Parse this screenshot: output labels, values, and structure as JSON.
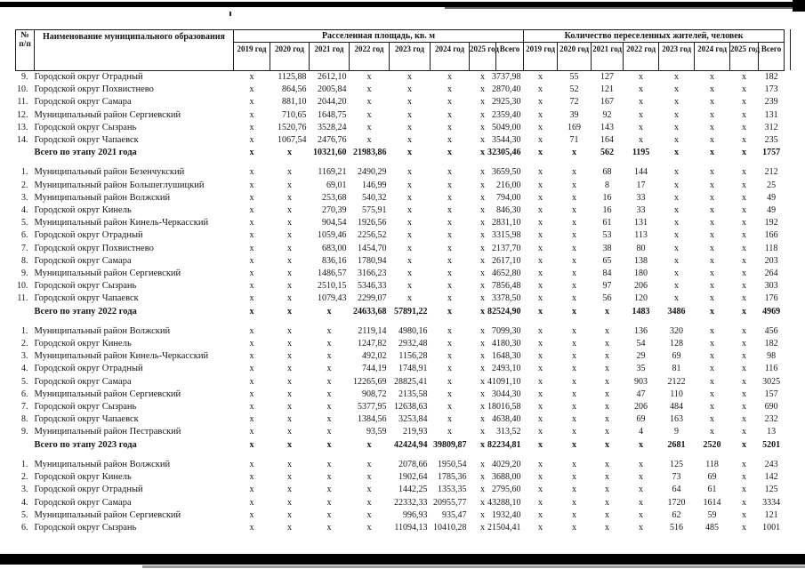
{
  "table": {
    "header": {
      "num_top": "№",
      "num_bottom": "п/п",
      "name": "Наименование муниципального образования",
      "group_area": "Расселенная площадь, кв. м",
      "group_people": "Количество переселенных жителей, человек",
      "year_cols": [
        "2019 год",
        "2020 год",
        "2021 год",
        "2022 год",
        "2023 год",
        "2024 год",
        "2025 год",
        "Всего"
      ]
    },
    "sections": [
      {
        "rows": [
          {
            "num": "9.",
            "name": "Городской округ Отрадный",
            "area": [
              "x",
              "1125,88",
              "2612,10",
              "x",
              "x",
              "x",
              "x",
              "3737,98"
            ],
            "people": [
              "x",
              "55",
              "127",
              "x",
              "x",
              "x",
              "x",
              "182"
            ]
          },
          {
            "num": "10.",
            "name": "Городской округ Похвистнево",
            "area": [
              "x",
              "864,56",
              "2005,84",
              "x",
              "x",
              "x",
              "x",
              "2870,40"
            ],
            "people": [
              "x",
              "52",
              "121",
              "x",
              "x",
              "x",
              "x",
              "173"
            ]
          },
          {
            "num": "11.",
            "name": "Городской округ Самара",
            "area": [
              "x",
              "881,10",
              "2044,20",
              "x",
              "x",
              "x",
              "x",
              "2925,30"
            ],
            "people": [
              "x",
              "72",
              "167",
              "x",
              "x",
              "x",
              "x",
              "239"
            ]
          },
          {
            "num": "12.",
            "name": "Муниципальный район Сергиевский",
            "area": [
              "x",
              "710,65",
              "1648,75",
              "x",
              "x",
              "x",
              "x",
              "2359,40"
            ],
            "people": [
              "x",
              "39",
              "92",
              "x",
              "x",
              "x",
              "x",
              "131"
            ]
          },
          {
            "num": "13.",
            "name": "Городской округ Сызрань",
            "area": [
              "x",
              "1520,76",
              "3528,24",
              "x",
              "x",
              "x",
              "x",
              "5049,00"
            ],
            "people": [
              "x",
              "169",
              "143",
              "x",
              "x",
              "x",
              "x",
              "312"
            ]
          },
          {
            "num": "14.",
            "name": "Городской округ Чапаевск",
            "area": [
              "x",
              "1067,54",
              "2476,76",
              "x",
              "x",
              "x",
              "x",
              "3544,30"
            ],
            "people": [
              "x",
              "71",
              "164",
              "x",
              "x",
              "x",
              "x",
              "235"
            ]
          }
        ],
        "total": {
          "label": "Всего по этапу 2021 года",
          "area": [
            "x",
            "x",
            "10321,60",
            "21983,86",
            "x",
            "x",
            "x",
            "32305,46"
          ],
          "people": [
            "x",
            "x",
            "562",
            "1195",
            "x",
            "x",
            "x",
            "1757"
          ]
        }
      },
      {
        "rows": [
          {
            "num": "1.",
            "name": "Муниципальный район Безенчукский",
            "area": [
              "x",
              "x",
              "1169,21",
              "2490,29",
              "x",
              "x",
              "x",
              "3659,50"
            ],
            "people": [
              "x",
              "x",
              "68",
              "144",
              "x",
              "x",
              "x",
              "212"
            ]
          },
          {
            "num": "2.",
            "name": "Муниципальный район Большеглушицкий",
            "area": [
              "x",
              "x",
              "69,01",
              "146,99",
              "x",
              "x",
              "x",
              "216,00"
            ],
            "people": [
              "x",
              "x",
              "8",
              "17",
              "x",
              "x",
              "x",
              "25"
            ]
          },
          {
            "num": "3.",
            "name": "Муниципальный район Волжский",
            "area": [
              "x",
              "x",
              "253,68",
              "540,32",
              "x",
              "x",
              "x",
              "794,00"
            ],
            "people": [
              "x",
              "x",
              "16",
              "33",
              "x",
              "x",
              "x",
              "49"
            ]
          },
          {
            "num": "4.",
            "name": "Городской округ Кинель",
            "area": [
              "x",
              "x",
              "270,39",
              "575,91",
              "x",
              "x",
              "x",
              "846,30"
            ],
            "people": [
              "x",
              "x",
              "16",
              "33",
              "x",
              "x",
              "x",
              "49"
            ]
          },
          {
            "num": "5.",
            "name": "Муниципальный район Кинель-Черкасский",
            "area": [
              "x",
              "x",
              "904,54",
              "1926,56",
              "x",
              "x",
              "x",
              "2831,10"
            ],
            "people": [
              "x",
              "x",
              "61",
              "131",
              "x",
              "x",
              "x",
              "192"
            ]
          },
          {
            "num": "6.",
            "name": "Городской округ Отрадный",
            "area": [
              "x",
              "x",
              "1059,46",
              "2256,52",
              "x",
              "x",
              "x",
              "3315,98"
            ],
            "people": [
              "x",
              "x",
              "53",
              "113",
              "x",
              "x",
              "x",
              "166"
            ]
          },
          {
            "num": "7.",
            "name": "Городской округ Похвистнево",
            "area": [
              "x",
              "x",
              "683,00",
              "1454,70",
              "x",
              "x",
              "x",
              "2137,70"
            ],
            "people": [
              "x",
              "x",
              "38",
              "80",
              "x",
              "x",
              "x",
              "118"
            ]
          },
          {
            "num": "8.",
            "name": "Городской округ Самара",
            "area": [
              "x",
              "x",
              "836,16",
              "1780,94",
              "x",
              "x",
              "x",
              "2617,10"
            ],
            "people": [
              "x",
              "x",
              "65",
              "138",
              "x",
              "x",
              "x",
              "203"
            ]
          },
          {
            "num": "9.",
            "name": "Муниципальный район Сергиевский",
            "area": [
              "x",
              "x",
              "1486,57",
              "3166,23",
              "x",
              "x",
              "x",
              "4652,80"
            ],
            "people": [
              "x",
              "x",
              "84",
              "180",
              "x",
              "x",
              "x",
              "264"
            ]
          },
          {
            "num": "10.",
            "name": "Городской округ Сызрань",
            "area": [
              "x",
              "x",
              "2510,15",
              "5346,33",
              "x",
              "x",
              "x",
              "7856,48"
            ],
            "people": [
              "x",
              "x",
              "97",
              "206",
              "x",
              "x",
              "x",
              "303"
            ]
          },
          {
            "num": "11.",
            "name": "Городской округ Чапаевск",
            "area": [
              "x",
              "x",
              "1079,43",
              "2299,07",
              "x",
              "x",
              "x",
              "3378,50"
            ],
            "people": [
              "x",
              "x",
              "56",
              "120",
              "x",
              "x",
              "x",
              "176"
            ]
          }
        ],
        "total": {
          "label": "Всего по этапу 2022 года",
          "area": [
            "x",
            "x",
            "x",
            "24633,68",
            "57891,22",
            "x",
            "x",
            "82524,90"
          ],
          "people": [
            "x",
            "x",
            "x",
            "1483",
            "3486",
            "x",
            "x",
            "4969"
          ]
        }
      },
      {
        "rows": [
          {
            "num": "1.",
            "name": "Муниципальный район Волжский",
            "area": [
              "x",
              "x",
              "x",
              "2119,14",
              "4980,16",
              "x",
              "x",
              "7099,30"
            ],
            "people": [
              "x",
              "x",
              "x",
              "136",
              "320",
              "x",
              "x",
              "456"
            ]
          },
          {
            "num": "2.",
            "name": "Городской округ Кинель",
            "area": [
              "x",
              "x",
              "x",
              "1247,82",
              "2932,48",
              "x",
              "x",
              "4180,30"
            ],
            "people": [
              "x",
              "x",
              "x",
              "54",
              "128",
              "x",
              "x",
              "182"
            ]
          },
          {
            "num": "3.",
            "name": "Муниципальный район Кинель-Черкасский",
            "area": [
              "x",
              "x",
              "x",
              "492,02",
              "1156,28",
              "x",
              "x",
              "1648,30"
            ],
            "people": [
              "x",
              "x",
              "x",
              "29",
              "69",
              "x",
              "x",
              "98"
            ]
          },
          {
            "num": "4.",
            "name": "Городской округ Отрадный",
            "area": [
              "x",
              "x",
              "x",
              "744,19",
              "1748,91",
              "x",
              "x",
              "2493,10"
            ],
            "people": [
              "x",
              "x",
              "x",
              "35",
              "81",
              "x",
              "x",
              "116"
            ]
          },
          {
            "num": "5.",
            "name": "Городской округ Самара",
            "area": [
              "x",
              "x",
              "x",
              "12265,69",
              "28825,41",
              "x",
              "x",
              "41091,10"
            ],
            "people": [
              "x",
              "x",
              "x",
              "903",
              "2122",
              "x",
              "x",
              "3025"
            ]
          },
          {
            "num": "6.",
            "name": "Муниципальный район Сергиевский",
            "area": [
              "x",
              "x",
              "x",
              "908,72",
              "2135,58",
              "x",
              "x",
              "3044,30"
            ],
            "people": [
              "x",
              "x",
              "x",
              "47",
              "110",
              "x",
              "x",
              "157"
            ]
          },
          {
            "num": "7.",
            "name": "Городской округ Сызрань",
            "area": [
              "x",
              "x",
              "x",
              "5377,95",
              "12638,63",
              "x",
              "x",
              "18016,58"
            ],
            "people": [
              "x",
              "x",
              "x",
              "206",
              "484",
              "x",
              "x",
              "690"
            ]
          },
          {
            "num": "8.",
            "name": "Городской округ Чапаевск",
            "area": [
              "x",
              "x",
              "x",
              "1384,56",
              "3253,84",
              "x",
              "x",
              "4638,40"
            ],
            "people": [
              "x",
              "x",
              "x",
              "69",
              "163",
              "x",
              "x",
              "232"
            ]
          },
          {
            "num": "9.",
            "name": "Муниципальный район Пестравский",
            "area": [
              "x",
              "x",
              "x",
              "93,59",
              "219,93",
              "x",
              "x",
              "313,52"
            ],
            "people": [
              "x",
              "x",
              "x",
              "4",
              "9",
              "x",
              "x",
              "13"
            ]
          }
        ],
        "total": {
          "label": "Всего по этапу 2023 года",
          "area": [
            "x",
            "x",
            "x",
            "x",
            "42424,94",
            "39809,87",
            "x",
            "82234,81"
          ],
          "people": [
            "x",
            "x",
            "x",
            "x",
            "2681",
            "2520",
            "x",
            "5201"
          ]
        }
      },
      {
        "rows": [
          {
            "num": "1.",
            "name": "Муниципальный район Волжский",
            "area": [
              "x",
              "x",
              "x",
              "x",
              "2078,66",
              "1950,54",
              "x",
              "4029,20"
            ],
            "people": [
              "x",
              "x",
              "x",
              "x",
              "125",
              "118",
              "x",
              "243"
            ]
          },
          {
            "num": "2.",
            "name": "Городской округ Кинель",
            "area": [
              "x",
              "x",
              "x",
              "x",
              "1902,64",
              "1785,36",
              "x",
              "3688,00"
            ],
            "people": [
              "x",
              "x",
              "x",
              "x",
              "73",
              "69",
              "x",
              "142"
            ]
          },
          {
            "num": "3.",
            "name": "Городской округ Отрадный",
            "area": [
              "x",
              "x",
              "x",
              "x",
              "1442,25",
              "1353,35",
              "x",
              "2795,60"
            ],
            "people": [
              "x",
              "x",
              "x",
              "x",
              "64",
              "61",
              "x",
              "125"
            ]
          },
          {
            "num": "4.",
            "name": "Городской округ Самара",
            "area": [
              "x",
              "x",
              "x",
              "x",
              "22332,33",
              "20955,77",
              "x",
              "43288,10"
            ],
            "people": [
              "x",
              "x",
              "x",
              "x",
              "1720",
              "1614",
              "x",
              "3334"
            ]
          },
          {
            "num": "5.",
            "name": "Муниципальный район Сергиевский",
            "area": [
              "x",
              "x",
              "x",
              "x",
              "996,93",
              "935,47",
              "x",
              "1932,40"
            ],
            "people": [
              "x",
              "x",
              "x",
              "x",
              "62",
              "59",
              "x",
              "121"
            ]
          },
          {
            "num": "6.",
            "name": "Городской округ Сызрань",
            "area": [
              "x",
              "x",
              "x",
              "x",
              "11094,13",
              "10410,28",
              "x",
              "21504,41"
            ],
            "people": [
              "x",
              "x",
              "x",
              "x",
              "516",
              "485",
              "x",
              "1001"
            ]
          }
        ],
        "total": null
      }
    ]
  }
}
